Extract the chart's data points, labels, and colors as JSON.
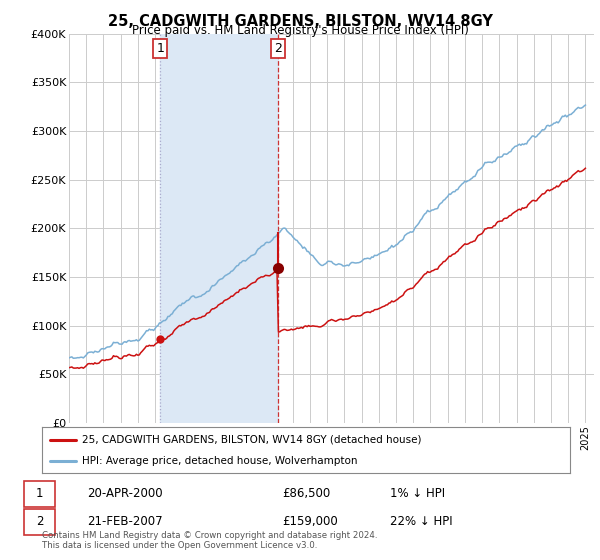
{
  "title": "25, CADGWITH GARDENS, BILSTON, WV14 8GY",
  "subtitle": "Price paid vs. HM Land Registry's House Price Index (HPI)",
  "ylabel_ticks": [
    "£0",
    "£50K",
    "£100K",
    "£150K",
    "£200K",
    "£250K",
    "£300K",
    "£350K",
    "£400K"
  ],
  "ytick_values": [
    0,
    50000,
    100000,
    150000,
    200000,
    250000,
    300000,
    350000,
    400000
  ],
  "ylim": [
    0,
    400000
  ],
  "xlim_start": 1995.0,
  "xlim_end": 2025.5,
  "sale1_year": 2000.3,
  "sale1_price": 86500,
  "sale1_label": "1",
  "sale2_year": 2007.15,
  "sale2_price": 159000,
  "sale2_label": "2",
  "legend_line1": "25, CADGWITH GARDENS, BILSTON, WV14 8GY (detached house)",
  "legend_line2": "HPI: Average price, detached house, Wolverhampton",
  "hpi_color": "#7bafd4",
  "price_color": "#cc1111",
  "vline1_color": "#aaaacc",
  "vline2_color": "#cc3333",
  "shade_color": "#dce8f5",
  "background_color": "#ffffff",
  "grid_color": "#cccccc"
}
